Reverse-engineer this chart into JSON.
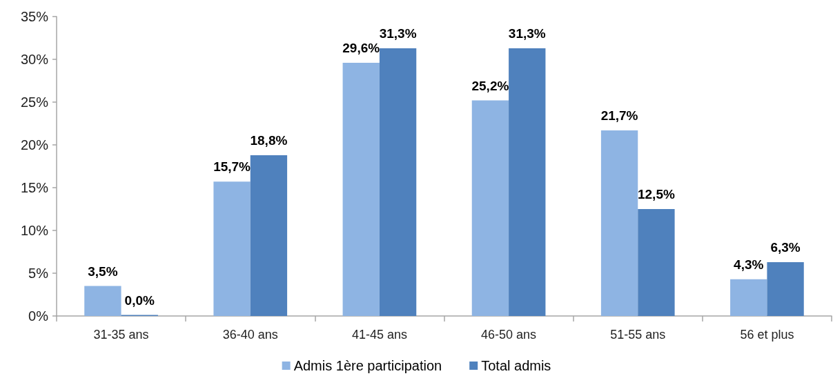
{
  "chart_data": {
    "type": "bar",
    "categories": [
      "31-35 ans",
      "36-40 ans",
      "41-45 ans",
      "46-50 ans",
      "51-55 ans",
      "56 et plus"
    ],
    "series": [
      {
        "name": "Admis 1ère participation",
        "color": "#8eb4e3",
        "values": [
          3.5,
          15.7,
          29.6,
          25.2,
          21.7,
          4.3
        ],
        "value_labels": [
          "3,5%",
          "15,7%",
          "29,6%",
          "25,2%",
          "21,7%",
          "4,3%"
        ]
      },
      {
        "name": "Total admis",
        "color": "#4f81bd",
        "values": [
          0.0,
          18.8,
          31.3,
          31.3,
          12.5,
          6.3
        ],
        "value_labels": [
          "0,0%",
          "18,8%",
          "31,3%",
          "31,3%",
          "12,5%",
          "6,3%"
        ]
      }
    ],
    "ylim": [
      0,
      35
    ],
    "yticks": [
      {
        "value": 0,
        "label": "0%"
      },
      {
        "value": 5,
        "label": "5%"
      },
      {
        "value": 10,
        "label": "10%"
      },
      {
        "value": 15,
        "label": "15%"
      },
      {
        "value": 20,
        "label": "20%"
      },
      {
        "value": 25,
        "label": "25%"
      },
      {
        "value": 30,
        "label": "30%"
      },
      {
        "value": 35,
        "label": "35%"
      }
    ],
    "grid": false,
    "legend": "bottom"
  }
}
